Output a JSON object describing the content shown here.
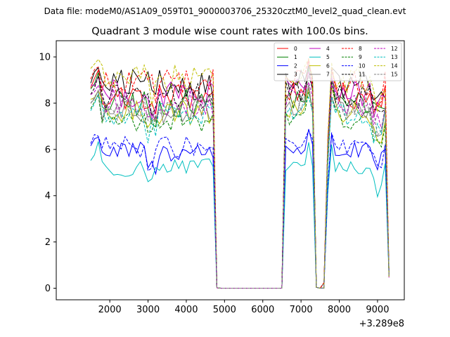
{
  "figure": {
    "suptitle": "Data file: modeM0/AS1A09_059T01_9000003706_25320cztM0_level2_quad_clean.evt"
  },
  "chart_data": {
    "type": "line",
    "title": "Quadrant 3 module wise count rates with 100.0s bins.",
    "xlabel": "",
    "ylabel": "",
    "x_offset_label": "+3.289e8",
    "xlim": [
      600,
      9700
    ],
    "ylim": [
      -0.5,
      10.7
    ],
    "xticks": [
      2000,
      3000,
      4000,
      5000,
      6000,
      7000,
      8000,
      9000
    ],
    "yticks": [
      0,
      2,
      4,
      6,
      8,
      10
    ],
    "grid": false,
    "legend_position": "top-right",
    "legend_columns": 4,
    "gap_start": 4800,
    "gap_end": 6500,
    "segments": [
      {
        "start": 1500,
        "end": 4700
      },
      {
        "start": 6600,
        "end": 7300
      },
      {
        "start": 7700,
        "end": 9300
      }
    ],
    "dips": [
      {
        "x": [
          6500,
          6600,
          7300,
          7400,
          7500,
          7600,
          7700
        ],
        "frac": [
          0,
          0.78,
          0.78,
          0.02,
          0.0,
          0.04,
          0.6
        ]
      },
      {
        "edges": {
          "left_start": 1500,
          "seg1_end": 4700,
          "drop1": 4800,
          "seg3_end": 9300
        }
      }
    ],
    "series": [
      {
        "name": "0",
        "color": "#ff0000",
        "dash": "solid",
        "base": 8.3,
        "peak": 9.5
      },
      {
        "name": "1",
        "color": "#008000",
        "dash": "solid",
        "base": 8.0,
        "peak": 9.2
      },
      {
        "name": "2",
        "color": "#0000ff",
        "dash": "solid",
        "base": 5.9,
        "peak": 6.6
      },
      {
        "name": "3",
        "color": "#000000",
        "dash": "solid",
        "base": 8.8,
        "peak": 9.4
      },
      {
        "name": "4",
        "color": "#bf00bf",
        "dash": "solid",
        "base": 8.4,
        "peak": 9.2
      },
      {
        "name": "5",
        "color": "#00bfbf",
        "dash": "solid",
        "base": 5.2,
        "peak": 6.2
      },
      {
        "name": "6",
        "color": "#bfbf00",
        "dash": "solid",
        "base": 7.6,
        "peak": 8.6
      },
      {
        "name": "7",
        "color": "#808080",
        "dash": "solid",
        "base": 7.7,
        "peak": 8.4
      },
      {
        "name": "8",
        "color": "#ff0000",
        "dash": "dashed",
        "base": 8.9,
        "peak": 9.6
      },
      {
        "name": "9",
        "color": "#008000",
        "dash": "dashed",
        "base": 7.3,
        "peak": 8.2
      },
      {
        "name": "10",
        "color": "#0000ff",
        "dash": "dashed",
        "base": 6.1,
        "peak": 6.6
      },
      {
        "name": "11",
        "color": "#000000",
        "dash": "dashed",
        "base": 8.3,
        "peak": 9.0
      },
      {
        "name": "12",
        "color": "#bf00bf",
        "dash": "dashed",
        "base": 8.0,
        "peak": 8.8
      },
      {
        "name": "13",
        "color": "#00bfbf",
        "dash": "dashed",
        "base": 7.5,
        "peak": 8.2
      },
      {
        "name": "14",
        "color": "#bfbf00",
        "dash": "dashed",
        "base": 9.0,
        "peak": 9.9
      },
      {
        "name": "15",
        "color": "#808080",
        "dash": "dashed",
        "base": 7.8,
        "peak": 8.3
      }
    ]
  }
}
